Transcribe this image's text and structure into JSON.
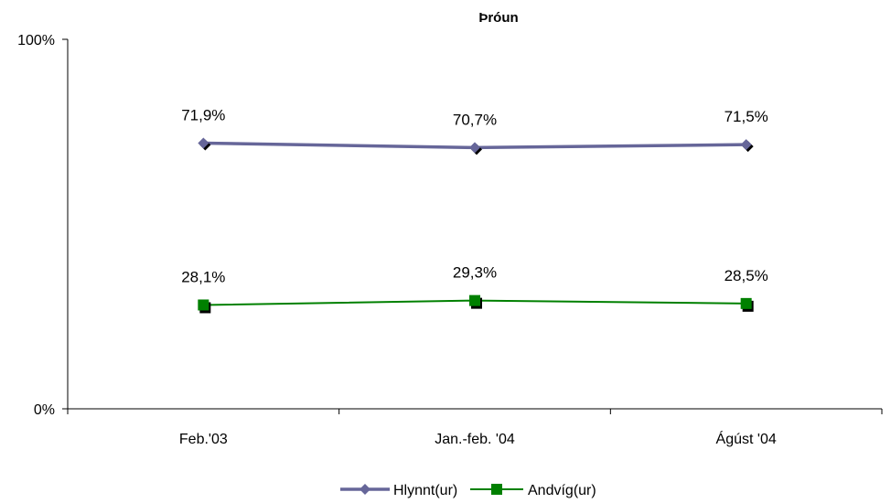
{
  "chart_data": {
    "type": "line",
    "title": "Þróun",
    "categories": [
      "Feb.'03",
      "Jan.-feb. '04",
      "Ágúst '04"
    ],
    "series": [
      {
        "name": "Hlynnt(ur)",
        "values": [
          71.9,
          70.7,
          71.5
        ],
        "labels": [
          "71,9%",
          "70,7%",
          "71,5%"
        ],
        "color": "#666699",
        "marker": "diamond"
      },
      {
        "name": "Andvíg(ur)",
        "values": [
          28.1,
          29.3,
          28.5
        ],
        "labels": [
          "28,1%",
          "29,3%",
          "28,5%"
        ],
        "color": "#008000",
        "marker": "square"
      }
    ],
    "ylim": [
      0,
      100
    ],
    "yticks": [
      "100%",
      "0%"
    ],
    "grid": false,
    "legend": "bottom"
  }
}
